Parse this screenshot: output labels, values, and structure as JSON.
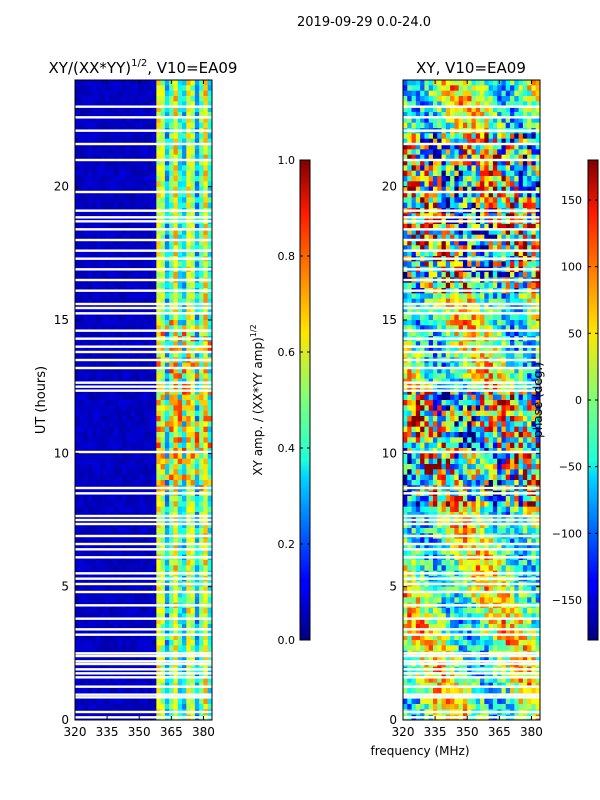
{
  "figure_title": "2019-09-29 0.0-24.0",
  "x_axis_shared_label": "frequency (MHz)",
  "chart_data": [
    {
      "type": "heatmap",
      "title_main": "XY/(XX*YY)",
      "title_super": "1/2",
      "title_rest": ", V10=EA09",
      "ylabel": "UT (hours)",
      "xlabel": "",
      "xlim": [
        320,
        384
      ],
      "ylim": [
        0,
        24
      ],
      "x_ticks": [
        320,
        335,
        350,
        365,
        380
      ],
      "y_ticks": [
        0,
        5,
        10,
        15,
        20
      ],
      "colorbar": {
        "label_main": "XY amp. / (XX*YY amp)",
        "label_super": "1/2",
        "range": [
          0.0,
          1.0
        ],
        "ticks": [
          "0.0",
          "0.2",
          "0.4",
          "0.6",
          "0.8",
          "1.0"
        ],
        "colormap": "jet"
      },
      "flagged_ut_hours": [
        0.1,
        0.3,
        0.85,
        0.95,
        1.25,
        1.6,
        1.75,
        1.9,
        2.1,
        2.2,
        2.4,
        2.5,
        3.2,
        3.4,
        3.8,
        4.3,
        4.8,
        5.1,
        5.3,
        5.5,
        6.1,
        6.4,
        6.6,
        6.9,
        7.35,
        7.5,
        7.65,
        8.5,
        8.7,
        10.05,
        12.35,
        12.5,
        12.65,
        13.2,
        13.5,
        13.8,
        14.0,
        14.3,
        14.6,
        15.25,
        15.45,
        15.6,
        16.1,
        16.5,
        16.9,
        17.3,
        17.6,
        18.0,
        18.4,
        18.7,
        18.85,
        19.1,
        19.8,
        21.0,
        21.6,
        22.1,
        22.6,
        23.0
      ]
    },
    {
      "type": "heatmap",
      "title_main": "XY, V10=EA09",
      "ylabel": "",
      "xlabel": "frequency (MHz)",
      "xlim": [
        320,
        384
      ],
      "ylim": [
        0,
        24
      ],
      "x_ticks": [
        320,
        335,
        350,
        365,
        380
      ],
      "y_ticks": [
        0,
        5,
        10,
        15,
        20
      ],
      "colorbar": {
        "label_main": "phase (deg.)",
        "range": [
          -180,
          180
        ],
        "ticks": [
          "−150",
          "−100",
          "−50",
          "0",
          "50",
          "100",
          "150"
        ],
        "tick_values": [
          -150,
          -100,
          -50,
          0,
          50,
          100,
          150
        ],
        "colormap": "jet"
      },
      "flagged_ut_hours": [
        0.1,
        0.3,
        0.85,
        0.95,
        1.25,
        1.6,
        1.75,
        1.9,
        2.1,
        2.2,
        2.4,
        2.5,
        3.2,
        3.4,
        3.8,
        4.3,
        4.8,
        5.1,
        5.3,
        5.5,
        6.1,
        6.4,
        6.6,
        6.9,
        7.35,
        7.5,
        7.65,
        8.5,
        8.7,
        10.05,
        12.35,
        12.5,
        12.65,
        13.2,
        13.5,
        13.8,
        14.0,
        14.3,
        14.6,
        15.25,
        15.45,
        15.6,
        16.1,
        16.5,
        16.9,
        17.3,
        17.6,
        18.0,
        18.4,
        18.7,
        18.85,
        19.1,
        19.8,
        21.0,
        21.6,
        22.1,
        22.6,
        23.0
      ]
    }
  ]
}
